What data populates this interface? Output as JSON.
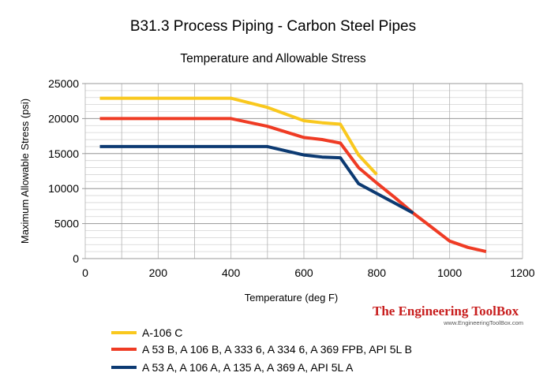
{
  "chart_data": {
    "type": "line",
    "title": "B31.3 Process Piping - Carbon Steel Pipes",
    "subtitle": "Temperature and Allowable Stress",
    "xlabel": "Temperature (deg F)",
    "ylabel": "Maximum Allowable Stress (psi)",
    "xlim": [
      0,
      1200
    ],
    "ylim": [
      0,
      25000
    ],
    "xticks": [
      0,
      200,
      400,
      600,
      800,
      1000,
      1200
    ],
    "yticks": [
      0,
      5000,
      10000,
      15000,
      20000,
      25000
    ],
    "grid": "horizontal minor lines every 1000 psi, vertical lines every 100 deg F",
    "legend_position": "bottom-left",
    "series": [
      {
        "name": "A-106 C",
        "color": "#f9c81e",
        "x": [
          40,
          100,
          200,
          300,
          400,
          500,
          600,
          650,
          700,
          750,
          800
        ],
        "y": [
          22900,
          22900,
          22900,
          22900,
          22900,
          21600,
          19700,
          19400,
          19200,
          14800,
          12000
        ]
      },
      {
        "name": "A 53 B, A 106 B, A 333 6, A 334 6, A 369 FPB,  API 5L B",
        "color": "#ef3b24",
        "x": [
          40,
          100,
          200,
          300,
          400,
          500,
          600,
          650,
          700,
          750,
          800,
          850,
          900,
          950,
          1000,
          1050,
          1100
        ],
        "y": [
          20000,
          20000,
          20000,
          20000,
          20000,
          18900,
          17300,
          17000,
          16500,
          13000,
          10800,
          8700,
          6500,
          4500,
          2500,
          1600,
          1000
        ]
      },
      {
        "name": "A 53 A, A 106 A, A 135 A, A 369 A, API 5L A",
        "color": "#0c3a72",
        "x": [
          40,
          100,
          200,
          300,
          400,
          500,
          600,
          650,
          700,
          750,
          800,
          850,
          900
        ],
        "y": [
          16000,
          16000,
          16000,
          16000,
          16000,
          16000,
          14800,
          14500,
          14400,
          10700,
          9300,
          7900,
          6500
        ]
      }
    ]
  },
  "watermark": {
    "brand": "The Engineering ToolBox",
    "url": "www.EngineeringToolBox.com"
  }
}
